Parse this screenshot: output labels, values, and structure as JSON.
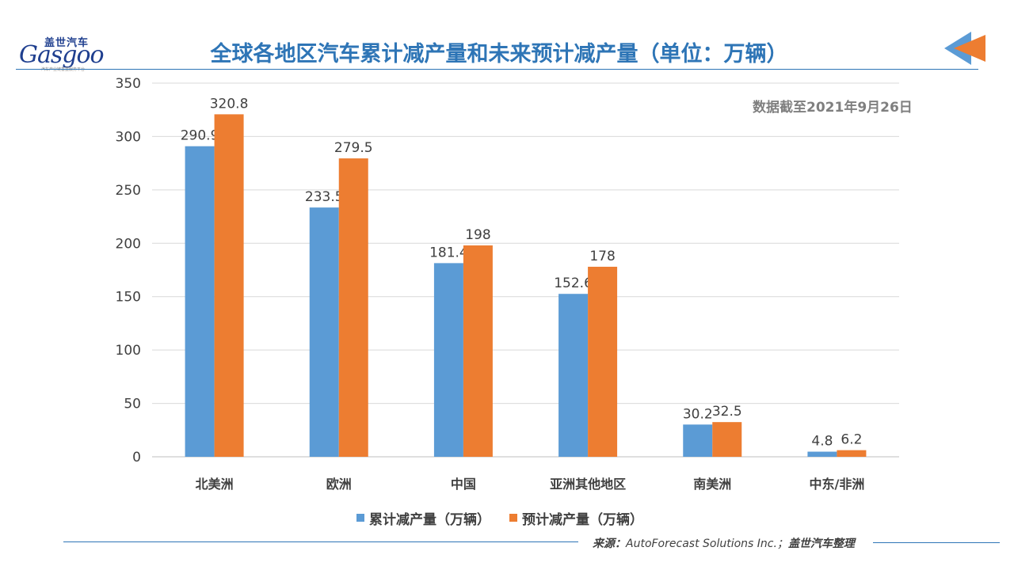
{
  "header": {
    "logo_cn": "盖世汽车",
    "logo_en": "Gasgoo",
    "logo_sub": "汽车产业链垂直服务平台",
    "title": "全球各地区汽车累计减产量和未来预计减产量（单位：万辆）"
  },
  "date_note": "数据截至2021年9月26日",
  "source": {
    "prefix": "来源：",
    "text": "AutoForecast Solutions Inc.；",
    "suffix": "盖世汽车整理"
  },
  "colors": {
    "series1": "#5b9bd5",
    "series2": "#ed7d31",
    "accent": "#2e75b6"
  },
  "chart_data": {
    "type": "bar",
    "title": "全球各地区汽车累计减产量和未来预计减产量（单位：万辆）",
    "xlabel": "",
    "ylabel": "",
    "categories": [
      "北美洲",
      "欧洲",
      "中国",
      "亚洲其他地区",
      "南美洲",
      "中东/非洲"
    ],
    "series": [
      {
        "name": "累计减产量（万辆）",
        "values": [
          290.9,
          233.5,
          181.4,
          152.6,
          30.2,
          4.8
        ]
      },
      {
        "name": "预计减产量（万辆）",
        "values": [
          320.8,
          279.5,
          198,
          178,
          32.5,
          6.2
        ]
      }
    ],
    "ylim": [
      0,
      350
    ],
    "yticks": [
      0,
      50,
      100,
      150,
      200,
      250,
      300,
      350
    ],
    "grid": true,
    "legend": "bottom"
  }
}
